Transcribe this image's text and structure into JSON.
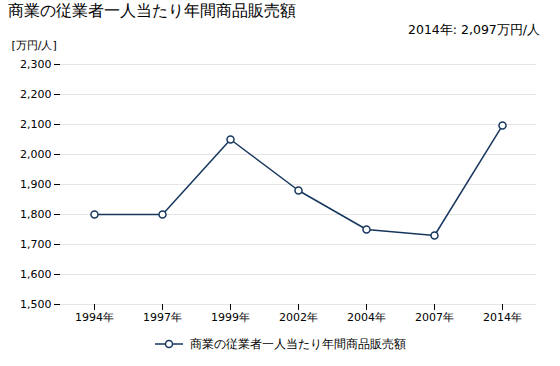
{
  "chart_data": {
    "type": "line",
    "title": "商業の従業者一人当たり年間商品販売額",
    "ylabel": "[万円/人]",
    "annotation": "2014年: 2,097万円/人",
    "categories": [
      "1994年",
      "1997年",
      "1999年",
      "2002年",
      "2004年",
      "2007年",
      "2014年"
    ],
    "series": [
      {
        "name": "商業の従業者一人当たり年間商品販売額",
        "color": "#17375E",
        "marker": "circle",
        "values": [
          1800,
          1800,
          2050,
          1880,
          1750,
          1730,
          2097
        ]
      }
    ],
    "ylim": [
      1500,
      2300
    ],
    "yticks": [
      {
        "value": 1500,
        "label": "1,500"
      },
      {
        "value": 1600,
        "label": "1,600"
      },
      {
        "value": 1700,
        "label": "1,700"
      },
      {
        "value": 1800,
        "label": "1,800"
      },
      {
        "value": 1900,
        "label": "1,900"
      },
      {
        "value": 2000,
        "label": "2,000"
      },
      {
        "value": 2100,
        "label": "2,100"
      },
      {
        "value": 2200,
        "label": "2,200"
      },
      {
        "value": 2300,
        "label": "2,300"
      }
    ],
    "grid": true,
    "legend": "bottom"
  }
}
